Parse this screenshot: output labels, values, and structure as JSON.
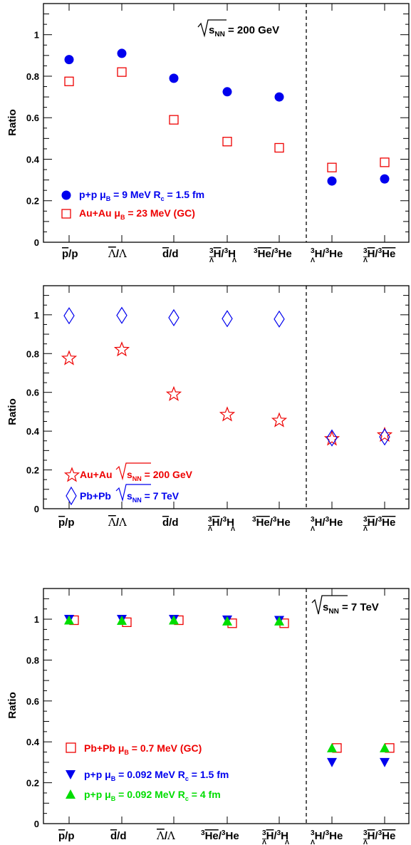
{
  "chart_data": [
    {
      "type": "scatter",
      "ylabel": "Ratio",
      "ylim": [
        0,
        1.15
      ],
      "yticks": [
        "0",
        "0.2",
        "0.4",
        "0.6",
        "0.8",
        "1"
      ],
      "categories": [
        "p̄/p",
        "Λ̄/Λ",
        "d̄/d",
        "³Λ̄H̄/³ΛH",
        "³He̅/³He",
        "³ΛH/³He",
        "³Λ̄H̄/³He̅"
      ],
      "annotation": "√sNN = 200 GeV",
      "series": [
        {
          "name": "p+p  μB = 9 MeV  Rc = 1.5 fm",
          "marker": "circle",
          "color": "#0000ee",
          "values": [
            0.88,
            0.91,
            0.79,
            0.725,
            0.7,
            0.295,
            0.305
          ]
        },
        {
          "name": "Au+Au  μB = 23 MeV (GC)",
          "marker": "square-open",
          "color": "#ee0000",
          "values": [
            0.775,
            0.82,
            0.59,
            0.485,
            0.455,
            0.36,
            0.385
          ]
        }
      ]
    },
    {
      "type": "scatter",
      "ylabel": "Ratio",
      "ylim": [
        0,
        1.15
      ],
      "yticks": [
        "0",
        "0.2",
        "0.4",
        "0.6",
        "0.8",
        "1"
      ],
      "categories": [
        "p̄/p",
        "Λ̄/Λ",
        "d̄/d",
        "³Λ̄H̄/³ΛH",
        "³He̅/³He",
        "³ΛH/³He",
        "³Λ̄H̄/³He̅"
      ],
      "series": [
        {
          "name": "Au+Au  √sNN = 200 GeV",
          "marker": "star-open",
          "color": "#ee0000",
          "values": [
            0.775,
            0.82,
            0.59,
            0.485,
            0.455,
            0.36,
            0.38
          ]
        },
        {
          "name": "Pb+Pb  √sNN = 7 TeV",
          "marker": "diamond-open",
          "color": "#0000ee",
          "values": [
            0.995,
            0.997,
            0.985,
            0.98,
            0.978,
            0.365,
            0.37
          ]
        }
      ]
    },
    {
      "type": "scatter",
      "ylabel": "Ratio",
      "ylim": [
        0,
        1.15
      ],
      "yticks": [
        "0",
        "0.2",
        "0.4",
        "0.6",
        "0.8",
        "1"
      ],
      "categories": [
        "p̄/p",
        "d̄/d",
        "Λ̄/Λ",
        "³He̅/³He",
        "³Λ̄H̄/³ΛH",
        "³ΛH/³He",
        "³Λ̄H̄/³He̅"
      ],
      "annotation": "√sNN = 7 TeV",
      "series": [
        {
          "name": "Pb+Pb  μB = 0.7 MeV  (GC)",
          "marker": "square-open",
          "color": "#ee0000",
          "values": [
            0.995,
            0.985,
            0.995,
            0.98,
            0.98,
            0.37,
            0.37
          ]
        },
        {
          "name": "p+p  μB = 0.092 MeV  Rc = 1.5 fm",
          "marker": "triangle-down",
          "color": "#0000ee",
          "values": [
            1.0,
            1.0,
            1.0,
            0.997,
            0.995,
            0.3,
            0.3
          ]
        },
        {
          "name": "p+p  μB = 0.092 MeV  Rc = 4 fm",
          "marker": "triangle-up",
          "color": "#00dd00",
          "values": [
            0.995,
            0.993,
            0.995,
            0.99,
            0.99,
            0.37,
            0.37
          ]
        }
      ]
    }
  ]
}
